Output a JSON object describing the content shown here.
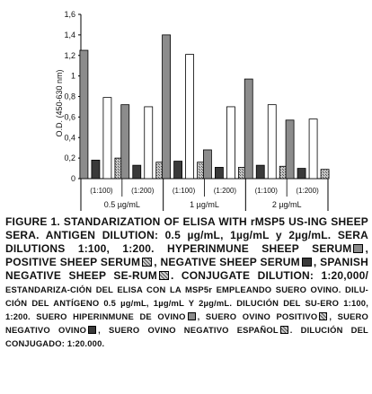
{
  "chart_data": {
    "type": "bar",
    "ylabel": "O.D. (450-630 nm)",
    "ylim": [
      0,
      1.6
    ],
    "yticks": [
      "0",
      "0,2",
      "0,4",
      "0,6",
      "0,8",
      "1",
      "1,2",
      "1,4",
      "1,6"
    ],
    "groups": [
      {
        "label": "0.5 µg/mL",
        "dilutions": [
          "(1:100)",
          "(1:200)"
        ]
      },
      {
        "label": "1 µg/mL",
        "dilutions": [
          "(1:100)",
          "(1:200)"
        ]
      },
      {
        "label": "2 µg/mL",
        "dilutions": [
          "(1:100)",
          "(1:200)"
        ]
      }
    ],
    "series": [
      {
        "values": [
          1.25,
          0.72,
          1.4,
          0.28,
          0.97,
          0.57
        ]
      },
      {
        "values": [
          0.18,
          0.13,
          0.17,
          0.11,
          0.13,
          0.1
        ]
      },
      {
        "values": [
          0.79,
          0.7,
          1.21,
          0.7,
          0.72,
          0.58
        ]
      },
      {
        "values": [
          0.2,
          0.16,
          0.16,
          0.11,
          0.12,
          0.09
        ]
      }
    ],
    "colors": [
      "#8c8c8c",
      "#3a3a3a",
      "#ffffff",
      "#b9b9b9"
    ],
    "grid": false,
    "legend": "none"
  },
  "caption": {
    "en_1": "FIGURE 1. STANDARIZATION OF ELISA WITH rMSP5 US-ING SHEEP SERA. ANTIGEN DILUTION: 0.5 µg/mL, 1µg/mL y 2µg/mL. SERA DILUTIONS 1:100, 1:200. HYPERINMUNE SHEEP SERUM",
    "en_2": ", POSITIVE SHEEP SERUM",
    "en_3": ", NEGATIVE SHEEP SERUM",
    "en_4": ", SPANISH NEGATIVE SHEEP SE-RUM",
    "en_5": ". CONJUGATE DILUTION: 1:20,000/",
    "es_1": " ESTANDARIZA-CIÓN DEL ELISA CON LA MSP5r EMPLEANDO SUERO OVINO. DILU-CIÓN DEL ANTÍGENO 0.5 µg/mL, 1µg/mL Y 2µg/mL. DILUCIÓN DEL SU-ERO 1:100, 1:200.  SUERO HIPERINMUNE DE OVINO",
    "es_2": ", SUERO OVINO POSITIVO",
    "es_3": ", SUERO NEGATIVO OVINO",
    "es_4": ", SUERO OVINO NEGATIVO ESPAÑOL",
    "es_5": ". DILUCIÓN DEL CONJUGADO: 1:20.000."
  }
}
